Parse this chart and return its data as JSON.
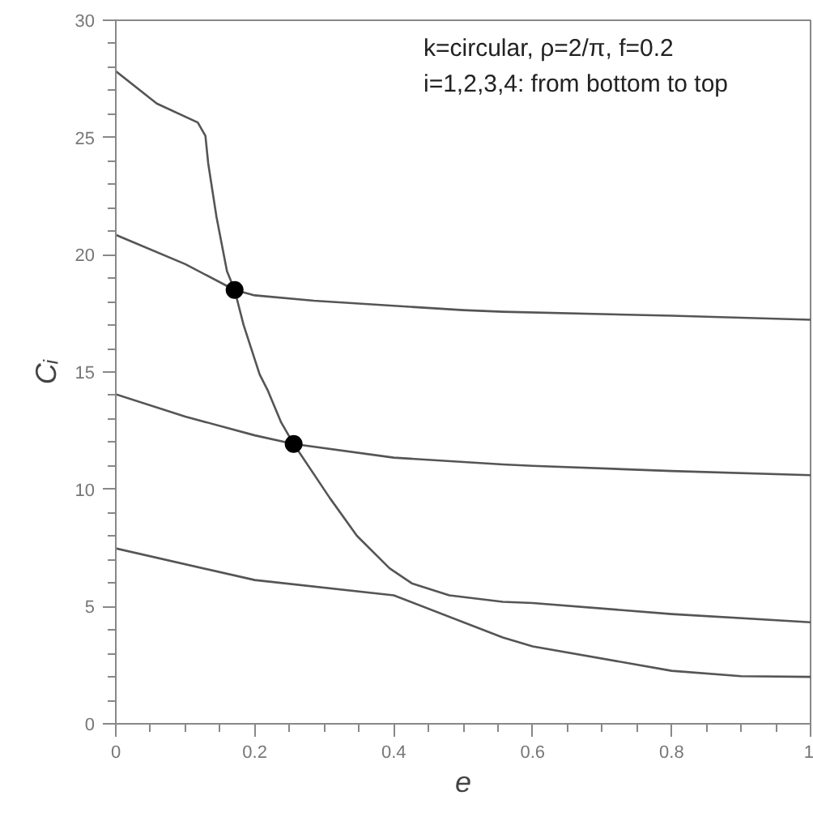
{
  "chart_data": {
    "type": "line",
    "xlabel": "e",
    "ylabel": "Cᵢ",
    "annotations": [
      "k=circular, ρ=2/π, f=0.2",
      "i=1,2,3,4: from bottom to top"
    ],
    "xlim": [
      0,
      1
    ],
    "ylim": [
      0,
      30
    ],
    "xticks": [
      0,
      0.2,
      0.4,
      0.6,
      0.8,
      1
    ],
    "yticks": [
      0,
      5,
      10,
      15,
      20,
      25,
      30
    ],
    "grid": false,
    "marker": "none",
    "line_style": "solid",
    "series": [
      {
        "color": "#555555",
        "x": [
          0,
          0.2,
          0.4,
          0.557,
          0.6,
          0.8,
          0.9,
          1
        ],
        "values": [
          7.48,
          6.13,
          5.48,
          3.68,
          3.3,
          2.26,
          2.03,
          2.0
        ]
      },
      {
        "color": "#555555",
        "x": [
          0,
          0.1,
          0.2,
          0.256,
          0.308,
          0.347,
          0.394,
          0.426,
          0.48,
          0.557,
          0.6,
          0.8,
          1
        ],
        "values": [
          14.05,
          13.1,
          12.3,
          11.93,
          9.63,
          8.02,
          6.63,
          5.99,
          5.48,
          5.2,
          5.15,
          4.68,
          4.33
        ]
      },
      {
        "color": "#555555",
        "x": [
          0,
          0.1,
          0.171,
          0.184,
          0.207,
          0.219,
          0.238,
          0.256,
          0.4,
          0.557,
          0.6,
          0.8,
          1
        ],
        "values": [
          20.85,
          19.6,
          18.5,
          17.0,
          14.9,
          14.2,
          12.85,
          11.93,
          11.35,
          11.06,
          11.0,
          10.78,
          10.6
        ]
      },
      {
        "color": "#555555",
        "x": [
          0,
          0.059,
          0.118,
          0.129,
          0.133,
          0.145,
          0.16,
          0.171,
          0.2,
          0.285,
          0.5,
          0.557,
          0.8,
          1
        ],
        "values": [
          27.83,
          26.45,
          25.64,
          25.07,
          23.9,
          21.6,
          19.3,
          18.5,
          18.27,
          18.04,
          17.64,
          17.57,
          17.4,
          17.23
        ]
      },
      {
        "type": "scatter",
        "marker": "circle",
        "color": "#000000",
        "x": [
          0.171,
          0.256
        ],
        "values": [
          18.5,
          11.93
        ]
      }
    ]
  }
}
